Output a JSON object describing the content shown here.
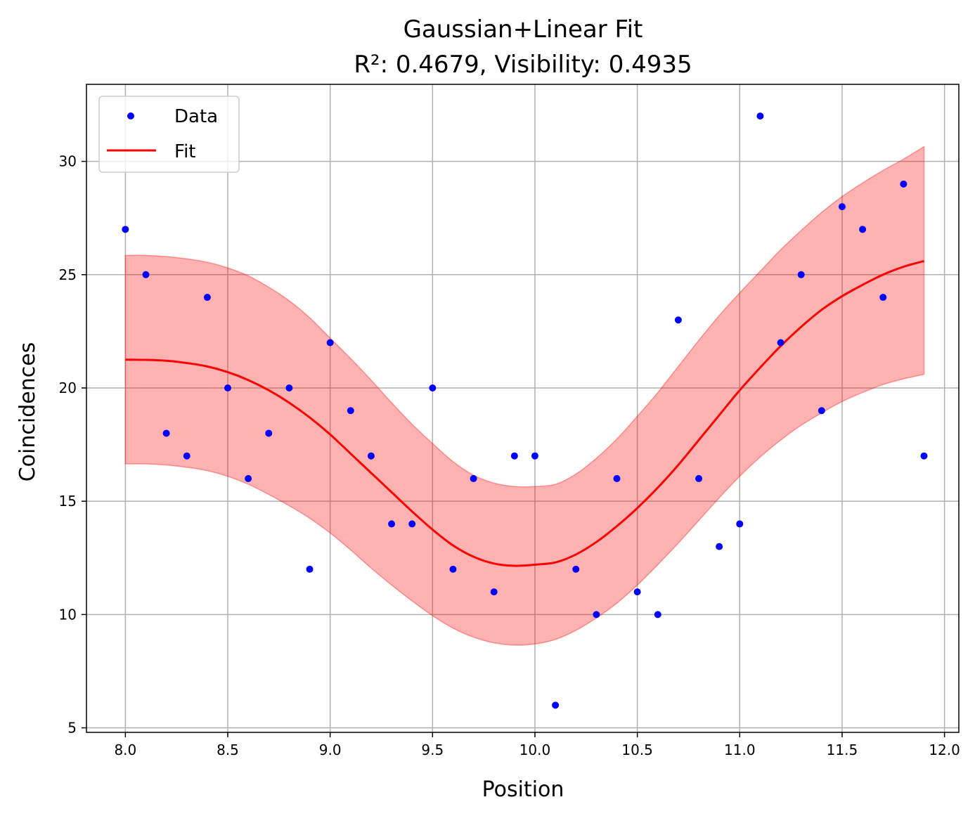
{
  "chart_data": {
    "type": "scatter",
    "title": "Gaussian+Linear Fit",
    "subtitle": "R²: 0.4679, Visibility: 0.4935",
    "xlabel": "Position",
    "ylabel": "Coincidences",
    "xlim": [
      7.81,
      12.07
    ],
    "ylim": [
      4.8,
      33.4
    ],
    "xticks": [
      8.0,
      8.5,
      9.0,
      9.5,
      10.0,
      10.5,
      11.0,
      11.5,
      12.0
    ],
    "xtick_labels": [
      "8.0",
      "8.5",
      "9.0",
      "9.5",
      "10.0",
      "10.5",
      "11.0",
      "11.5",
      "12.0"
    ],
    "yticks": [
      5,
      10,
      15,
      20,
      25,
      30
    ],
    "ytick_labels": [
      "5",
      "10",
      "15",
      "20",
      "25",
      "30"
    ],
    "grid": true,
    "legend_position": "top-left",
    "legend": [
      {
        "label": "Data",
        "kind": "marker",
        "color": "#0000ff"
      },
      {
        "label": "Fit",
        "kind": "line",
        "color": "#ff0000"
      }
    ],
    "series": [
      {
        "name": "Data",
        "kind": "scatter",
        "color": "#0000ff",
        "x": [
          8.0,
          8.1,
          8.2,
          8.3,
          8.4,
          8.5,
          8.6,
          8.7,
          8.8,
          8.9,
          9.0,
          9.1,
          9.2,
          9.3,
          9.4,
          9.5,
          9.6,
          9.7,
          9.8,
          9.9,
          10.0,
          10.1,
          10.2,
          10.3,
          10.4,
          10.5,
          10.6,
          10.7,
          10.8,
          10.9,
          11.0,
          11.1,
          11.2,
          11.3,
          11.4,
          11.5,
          11.6,
          11.7,
          11.8,
          11.9
        ],
        "y": [
          27,
          25,
          18,
          17,
          24,
          20,
          16,
          18,
          20,
          12,
          22,
          19,
          17,
          14,
          14,
          20,
          12,
          16,
          11,
          17,
          17,
          6,
          12,
          10,
          16,
          11,
          10,
          23,
          16,
          13,
          14,
          32,
          22,
          25,
          19,
          28,
          27,
          24,
          29,
          17
        ]
      },
      {
        "name": "Fit",
        "kind": "line",
        "color": "#ff0000",
        "x": [
          8.0,
          8.1,
          8.2,
          8.3,
          8.4,
          8.5,
          8.6,
          8.7,
          8.8,
          8.9,
          9.0,
          9.1,
          9.2,
          9.3,
          9.4,
          9.5,
          9.6,
          9.7,
          9.8,
          9.9,
          10.0,
          10.1,
          10.2,
          10.3,
          10.4,
          10.5,
          10.6,
          10.7,
          10.8,
          10.9,
          11.0,
          11.1,
          11.2,
          11.3,
          11.4,
          11.5,
          11.6,
          11.7,
          11.8,
          11.9
        ],
        "y": [
          21.25,
          21.24,
          21.2,
          21.1,
          20.95,
          20.7,
          20.35,
          19.9,
          19.35,
          18.7,
          17.95,
          17.1,
          16.25,
          15.4,
          14.55,
          13.75,
          13.05,
          12.55,
          12.25,
          12.15,
          12.2,
          12.3,
          12.65,
          13.2,
          13.9,
          14.7,
          15.6,
          16.6,
          17.7,
          18.8,
          19.9,
          20.9,
          21.85,
          22.7,
          23.45,
          24.05,
          24.55,
          25.0,
          25.35,
          25.6
        ]
      },
      {
        "name": "Confidence band",
        "kind": "band",
        "color": "#ff0000",
        "x": [
          8.0,
          8.1,
          8.2,
          8.3,
          8.4,
          8.5,
          8.6,
          8.7,
          8.8,
          8.9,
          9.0,
          9.1,
          9.2,
          9.3,
          9.4,
          9.5,
          9.6,
          9.7,
          9.8,
          9.9,
          10.0,
          10.1,
          10.2,
          10.3,
          10.4,
          10.5,
          10.6,
          10.7,
          10.8,
          10.9,
          11.0,
          11.1,
          11.2,
          11.3,
          11.4,
          11.5,
          11.6,
          11.7,
          11.8,
          11.9
        ],
        "upper": [
          25.85,
          25.85,
          25.8,
          25.7,
          25.55,
          25.3,
          24.95,
          24.45,
          23.85,
          23.1,
          22.2,
          21.3,
          20.35,
          19.35,
          18.4,
          17.55,
          16.75,
          16.15,
          15.8,
          15.65,
          15.65,
          15.75,
          16.2,
          16.9,
          17.75,
          18.75,
          19.8,
          20.95,
          22.1,
          23.2,
          24.2,
          25.15,
          26.1,
          26.95,
          27.75,
          28.45,
          29.05,
          29.6,
          30.1,
          30.65
        ],
        "lower": [
          16.65,
          16.65,
          16.6,
          16.5,
          16.35,
          16.1,
          15.75,
          15.3,
          14.8,
          14.25,
          13.6,
          12.85,
          12.05,
          11.3,
          10.6,
          9.95,
          9.4,
          9.0,
          8.75,
          8.65,
          8.7,
          8.9,
          9.3,
          9.85,
          10.5,
          11.3,
          12.2,
          13.15,
          14.15,
          15.15,
          16.1,
          16.95,
          17.7,
          18.35,
          18.9,
          19.4,
          19.8,
          20.15,
          20.4,
          20.6
        ]
      }
    ]
  }
}
